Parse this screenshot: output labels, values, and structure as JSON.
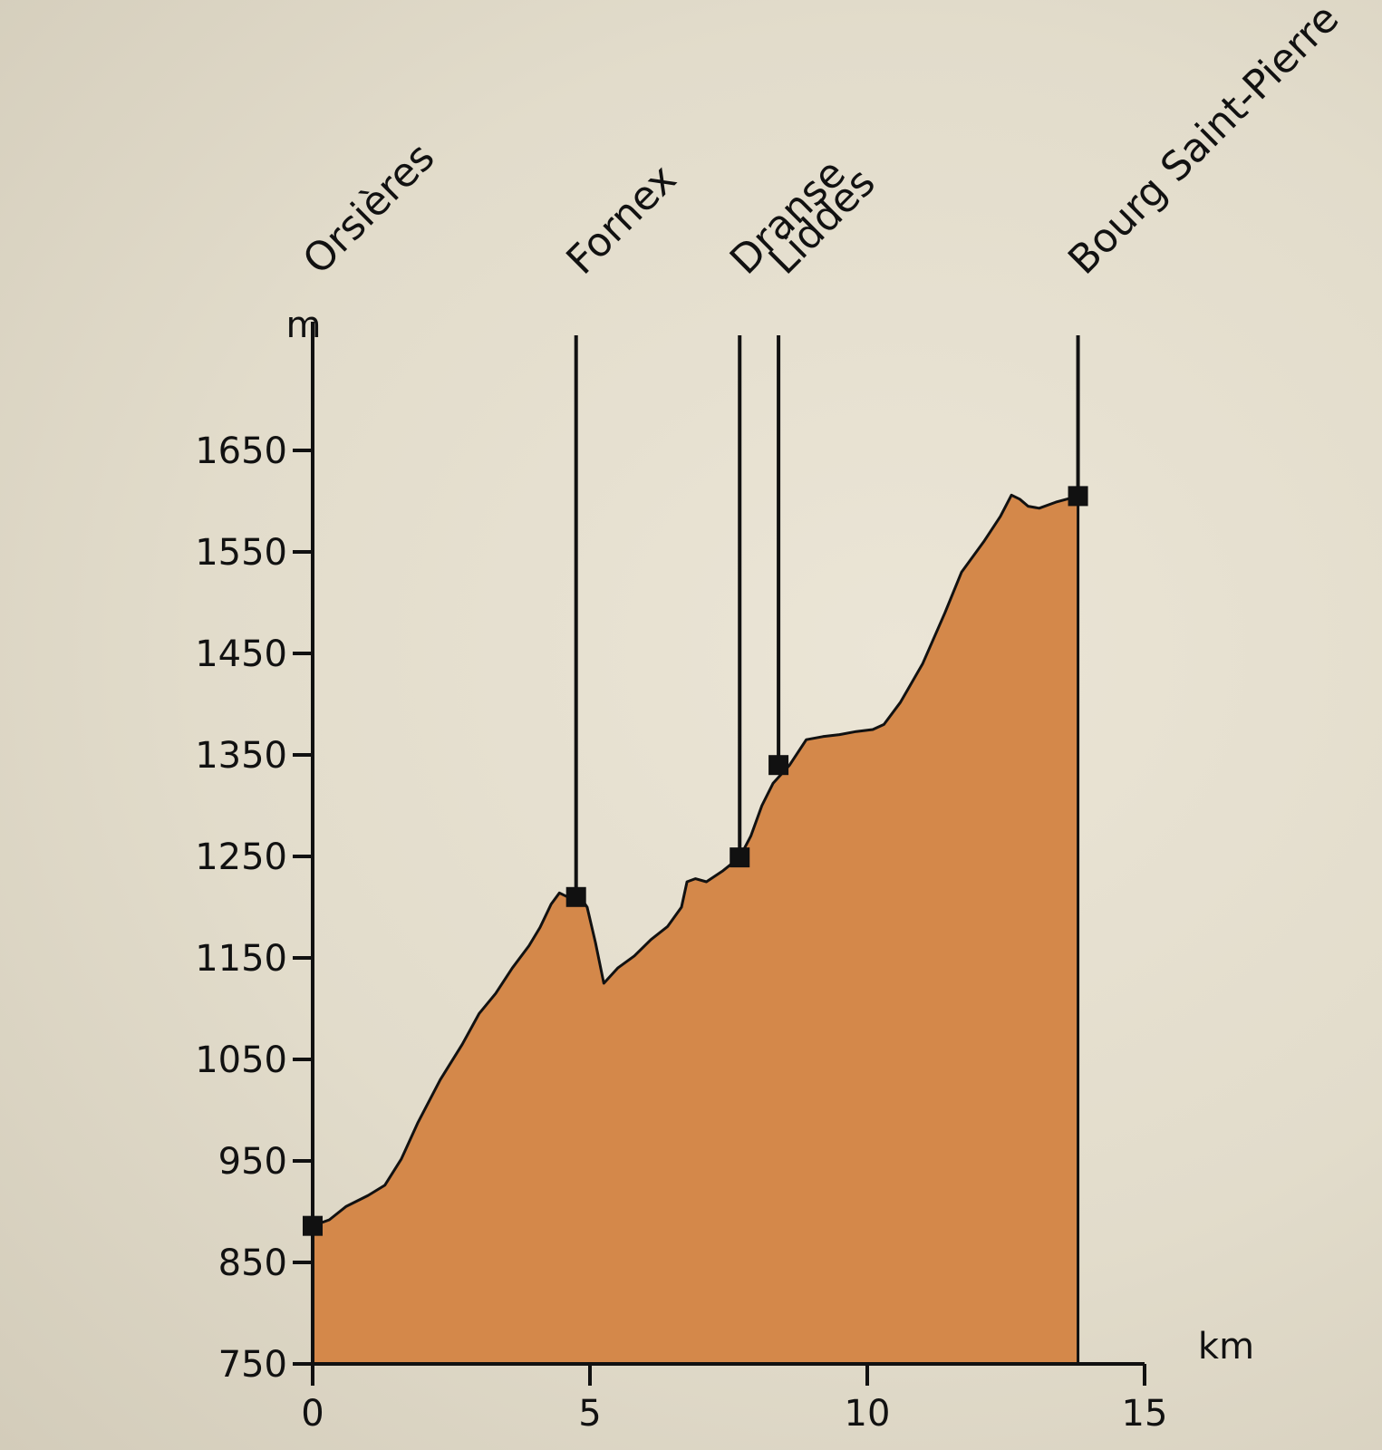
{
  "chart_data": {
    "type": "area",
    "title": "",
    "xlabel": "",
    "ylabel": "",
    "x_unit": "km",
    "y_unit": "m",
    "xlim": [
      0,
      15
    ],
    "ylim": [
      750,
      1700
    ],
    "x_ticks": [
      0,
      5,
      10,
      15
    ],
    "y_ticks": [
      750,
      850,
      950,
      1050,
      1150,
      1250,
      1350,
      1450,
      1550,
      1650
    ],
    "grid": false,
    "fill_color": "#d4884a",
    "line_color": "#111111",
    "series": [
      {
        "x": [
          0,
          0.3,
          0.6,
          1.0,
          1.3,
          1.6,
          1.9,
          2.3,
          2.7,
          3.0,
          3.3,
          3.6,
          3.9,
          4.1,
          4.3,
          4.45,
          4.6,
          4.8,
          4.95,
          5.1,
          5.25,
          5.5,
          5.8,
          6.1,
          6.4,
          6.65,
          6.75,
          6.9,
          7.1,
          7.4,
          7.7,
          7.9,
          8.1,
          8.3,
          8.6,
          8.9,
          9.2,
          9.5,
          9.8,
          10.1,
          10.3,
          10.6,
          11.0,
          11.4,
          11.7,
          12.1,
          12.4,
          12.6,
          12.75,
          12.9,
          13.1,
          13.4,
          13.8
        ],
        "y": [
          886,
          892,
          905,
          916,
          926,
          952,
          988,
          1030,
          1065,
          1095,
          1115,
          1140,
          1162,
          1180,
          1203,
          1214,
          1210,
          1212,
          1200,
          1165,
          1125,
          1140,
          1152,
          1168,
          1181,
          1200,
          1225,
          1228,
          1225,
          1236,
          1249,
          1270,
          1300,
          1322,
          1340,
          1365,
          1368,
          1370,
          1373,
          1375,
          1380,
          1402,
          1440,
          1490,
          1530,
          1560,
          1585,
          1606,
          1602,
          1595,
          1593,
          1599,
          1605
        ]
      }
    ],
    "places": [
      {
        "name": "Orsières",
        "km": 0,
        "alt": 886
      },
      {
        "name": "Fornex",
        "km": 4.75,
        "alt": 1210
      },
      {
        "name": "Dranse",
        "km": 7.7,
        "alt": 1249
      },
      {
        "name": "Liddes",
        "km": 8.4,
        "alt": 1340
      },
      {
        "name": "Bourg Saint-Pierre",
        "km": 13.8,
        "alt": 1605
      }
    ]
  }
}
